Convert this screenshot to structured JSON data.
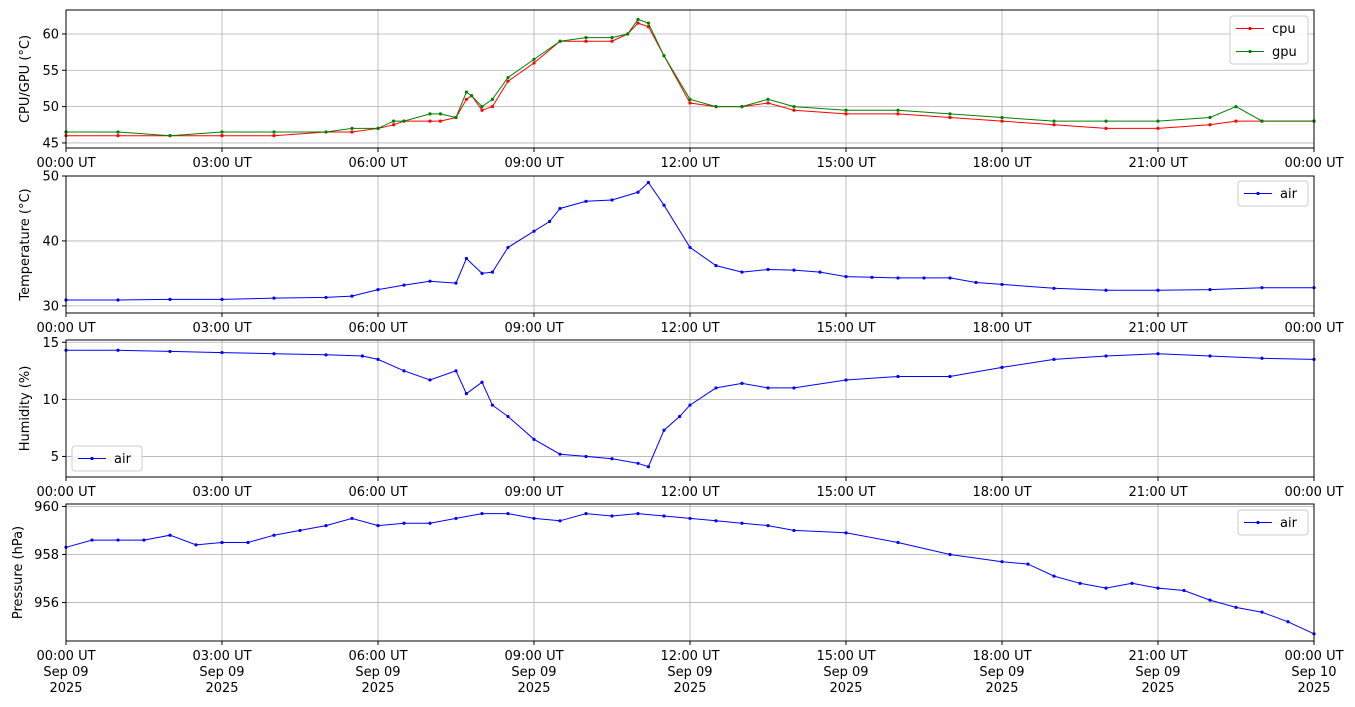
{
  "colors": {
    "cpu": "#ff0000",
    "gpu": "#008000",
    "air": "#0000ff",
    "grid": "#b0b0b0"
  },
  "chart_data": [
    {
      "type": "line",
      "ylabel": "CPU/GPU (°C)",
      "ylim": [
        44.3,
        63.3
      ],
      "yticks": [
        45,
        50,
        55,
        60
      ],
      "xlim_hours": [
        0,
        24
      ],
      "xtick_labels": [
        "00:00 UT",
        "03:00 UT",
        "06:00 UT",
        "09:00 UT",
        "12:00 UT",
        "15:00 UT",
        "18:00 UT",
        "21:00 UT",
        "00:00 UT"
      ],
      "grid": true,
      "legend": "top-right",
      "series": [
        {
          "name": "cpu",
          "color": "#ff0000",
          "x": [
            0,
            1,
            2,
            3,
            4,
            5,
            5.5,
            6,
            6.3,
            6.5,
            7,
            7.2,
            7.5,
            7.7,
            7.8,
            8,
            8.2,
            8.5,
            9,
            9.5,
            10,
            10.5,
            10.8,
            11,
            11.2,
            11.5,
            12,
            12.5,
            13,
            13.5,
            14,
            15,
            16,
            17,
            18,
            19,
            20,
            21,
            22,
            22.5,
            23,
            24
          ],
          "y": [
            46,
            46,
            46,
            46,
            46,
            46.5,
            46.5,
            47,
            47.5,
            48,
            48,
            48,
            48.5,
            51,
            51.5,
            49.5,
            50,
            53.5,
            56,
            59,
            59,
            59,
            60,
            61.5,
            61,
            57,
            50.5,
            50,
            50,
            50.5,
            49.5,
            49,
            49,
            48.5,
            48,
            47.5,
            47,
            47,
            47.5,
            48,
            48,
            48
          ]
        },
        {
          "name": "gpu",
          "color": "#008000",
          "x": [
            0,
            1,
            2,
            3,
            4,
            5,
            5.5,
            6,
            6.3,
            6.5,
            7,
            7.2,
            7.5,
            7.7,
            7.8,
            8,
            8.2,
            8.5,
            9,
            9.5,
            10,
            10.5,
            10.8,
            11,
            11.2,
            11.5,
            12,
            12.5,
            13,
            13.5,
            14,
            15,
            16,
            17,
            18,
            19,
            20,
            21,
            22,
            22.5,
            23,
            24
          ],
          "y": [
            46.5,
            46.5,
            46,
            46.5,
            46.5,
            46.5,
            47,
            47,
            48,
            48,
            49,
            49,
            48.5,
            52,
            51.5,
            50,
            51,
            54,
            56.5,
            59,
            59.5,
            59.5,
            60,
            62,
            61.5,
            57,
            51,
            50,
            50,
            51,
            50,
            49.5,
            49.5,
            49,
            48.5,
            48,
            48,
            48,
            48.5,
            50,
            48,
            48
          ]
        }
      ]
    },
    {
      "type": "line",
      "ylabel": "Temperature (°C)",
      "ylim": [
        28.9,
        50
      ],
      "yticks": [
        30,
        40,
        50
      ],
      "xlim_hours": [
        0,
        24
      ],
      "xtick_labels": [
        "00:00 UT",
        "03:00 UT",
        "06:00 UT",
        "09:00 UT",
        "12:00 UT",
        "15:00 UT",
        "18:00 UT",
        "21:00 UT",
        "00:00 UT"
      ],
      "grid": true,
      "legend": "top-right",
      "series": [
        {
          "name": "air",
          "color": "#0000ff",
          "x": [
            0,
            1,
            2,
            3,
            4,
            5,
            5.5,
            6,
            6.5,
            7,
            7.5,
            7.7,
            8,
            8.2,
            8.5,
            9,
            9.3,
            9.5,
            10,
            10.5,
            11,
            11.2,
            11.5,
            12,
            12.5,
            13,
            13.5,
            14,
            14.5,
            15,
            15.5,
            16,
            16.5,
            17,
            17.5,
            18,
            19,
            20,
            21,
            22,
            23,
            24
          ],
          "y": [
            30.9,
            30.9,
            31,
            31,
            31.2,
            31.3,
            31.5,
            32.5,
            33.2,
            33.8,
            33.5,
            37.3,
            35,
            35.2,
            39,
            41.5,
            43,
            45,
            46.1,
            46.3,
            47.5,
            49,
            45.5,
            39,
            36.2,
            35.2,
            35.6,
            35.5,
            35.2,
            34.5,
            34.4,
            34.3,
            34.3,
            34.3,
            33.6,
            33.3,
            32.7,
            32.4,
            32.4,
            32.5,
            32.8,
            32.8
          ]
        }
      ]
    },
    {
      "type": "line",
      "ylabel": "Humidity (%)",
      "ylim": [
        3.2,
        15.2
      ],
      "yticks": [
        5,
        10,
        15
      ],
      "xlim_hours": [
        0,
        24
      ],
      "xtick_labels": [
        "00:00 UT",
        "03:00 UT",
        "06:00 UT",
        "09:00 UT",
        "12:00 UT",
        "15:00 UT",
        "18:00 UT",
        "21:00 UT",
        "00:00 UT"
      ],
      "grid": true,
      "legend": "bottom-left",
      "series": [
        {
          "name": "air",
          "color": "#0000ff",
          "x": [
            0,
            1,
            2,
            3,
            4,
            5,
            5.7,
            6,
            6.5,
            7,
            7.5,
            7.7,
            8,
            8.2,
            8.5,
            9,
            9.5,
            10,
            10.5,
            11,
            11.2,
            11.5,
            11.8,
            12,
            12.5,
            13,
            13.5,
            14,
            15,
            16,
            17,
            18,
            19,
            20,
            21,
            22,
            23,
            24
          ],
          "y": [
            14.3,
            14.3,
            14.2,
            14.1,
            14,
            13.9,
            13.8,
            13.5,
            12.5,
            11.7,
            12.5,
            10.5,
            11.5,
            9.5,
            8.5,
            6.5,
            5.2,
            5,
            4.8,
            4.4,
            4.1,
            7.3,
            8.5,
            9.5,
            11,
            11.4,
            11,
            11,
            11.7,
            12,
            12,
            12.8,
            13.5,
            13.8,
            14,
            13.8,
            13.6,
            13.5
          ]
        }
      ]
    },
    {
      "type": "line",
      "ylabel": "Pressure (hPa)",
      "ylim": [
        954.4,
        960.1
      ],
      "yticks": [
        956,
        958,
        960
      ],
      "xlim_hours": [
        0,
        24
      ],
      "xtick_labels": [
        "00:00 UT\nSep 09\n2025",
        "03:00 UT\nSep 09\n2025",
        "06:00 UT\nSep 09\n2025",
        "09:00 UT\nSep 09\n2025",
        "12:00 UT\nSep 09\n2025",
        "15:00 UT\nSep 09\n2025",
        "18:00 UT\nSep 09\n2025",
        "21:00 UT\nSep 09\n2025",
        "00:00 UT\nSep 10\n2025"
      ],
      "grid": true,
      "legend": "top-right",
      "series": [
        {
          "name": "air",
          "color": "#0000ff",
          "x": [
            0,
            0.5,
            1,
            1.5,
            2,
            2.5,
            3,
            3.5,
            4,
            4.5,
            5,
            5.5,
            6,
            6.5,
            7,
            7.5,
            8,
            8.5,
            9,
            9.5,
            10,
            10.5,
            11,
            11.5,
            12,
            12.5,
            13,
            13.5,
            14,
            15,
            16,
            17,
            18,
            18.5,
            19,
            19.5,
            20,
            20.5,
            21,
            21.5,
            22,
            22.5,
            23,
            23.5,
            24
          ],
          "y": [
            958.3,
            958.6,
            958.6,
            958.6,
            958.8,
            958.4,
            958.5,
            958.5,
            958.8,
            959.0,
            959.2,
            959.5,
            959.2,
            959.3,
            959.3,
            959.5,
            959.7,
            959.7,
            959.5,
            959.4,
            959.7,
            959.6,
            959.7,
            959.6,
            959.5,
            959.4,
            959.3,
            959.2,
            959.0,
            958.9,
            958.5,
            958.0,
            957.7,
            957.6,
            957.1,
            956.8,
            956.6,
            956.8,
            956.6,
            956.5,
            956.1,
            955.8,
            955.6,
            955.2,
            954.7
          ]
        }
      ]
    }
  ]
}
